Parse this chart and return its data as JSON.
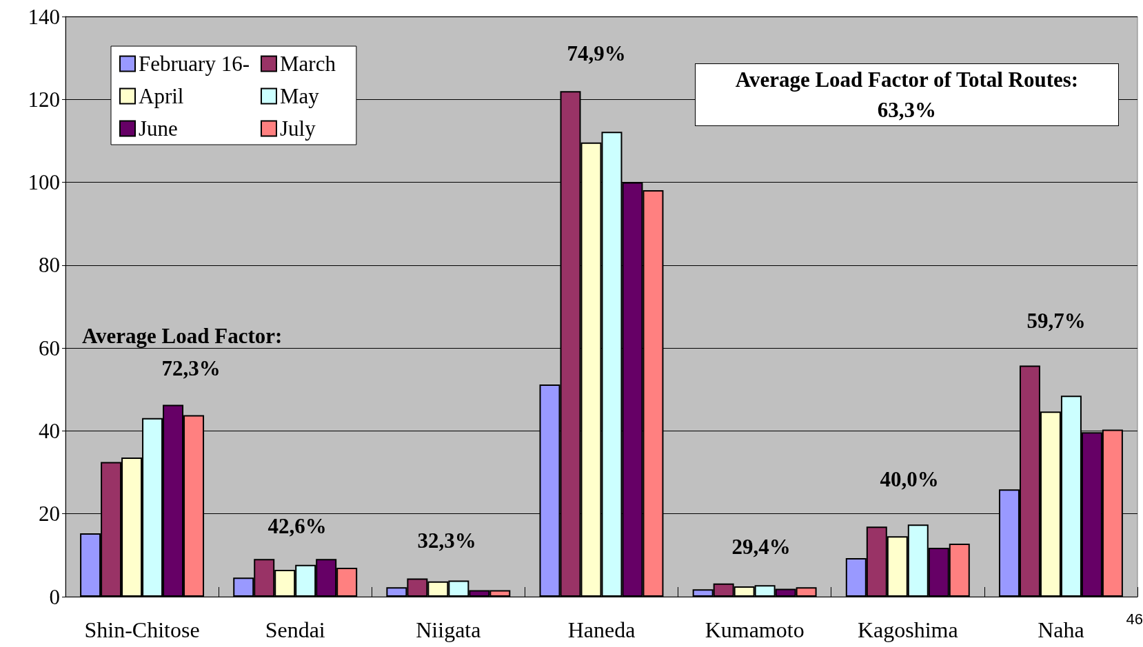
{
  "chart_data": {
    "type": "bar",
    "categories": [
      "Shin-Chitose",
      "Sendai",
      "Niigata",
      "Haneda",
      "Kumamoto",
      "Kagoshima",
      "Naha"
    ],
    "series": [
      {
        "name": "February 16-",
        "color": "#9999ff",
        "values": [
          15.3,
          4.6,
          2.3,
          51.2,
          1.8,
          9.3,
          25.9
        ]
      },
      {
        "name": "March",
        "color": "#993366",
        "values": [
          32.5,
          9.1,
          4.4,
          122,
          3.2,
          16.9,
          55.8
        ]
      },
      {
        "name": "April",
        "color": "#ffffcc",
        "values": [
          33.6,
          6.5,
          3.7,
          109.6,
          2.5,
          14.6,
          44.7
        ]
      },
      {
        "name": "May",
        "color": "#ccffff",
        "values": [
          43.1,
          7.7,
          3.9,
          112.2,
          2.8,
          17.4,
          48.5
        ]
      },
      {
        "name": "June",
        "color": "#660066",
        "values": [
          46.3,
          9.1,
          1.6,
          100,
          1.9,
          11.8,
          39.7
        ]
      },
      {
        "name": "July",
        "color": "#ff8080",
        "values": [
          43.8,
          7.0,
          1.6,
          98.1,
          2.3,
          12.8,
          40.3
        ]
      }
    ],
    "ylim": [
      0,
      140
    ],
    "yticks": [
      0,
      20,
      40,
      60,
      80,
      100,
      120,
      140
    ],
    "grid": "y",
    "legend": "top left",
    "annotations": [
      "Average Load Factor:",
      "72,3%",
      "42,6%",
      "32,3%",
      "74,9%",
      "29,4%",
      "40,0%",
      "59,7%",
      "Average Load Factor of Total Routes:\n63,3%",
      "46"
    ]
  }
}
